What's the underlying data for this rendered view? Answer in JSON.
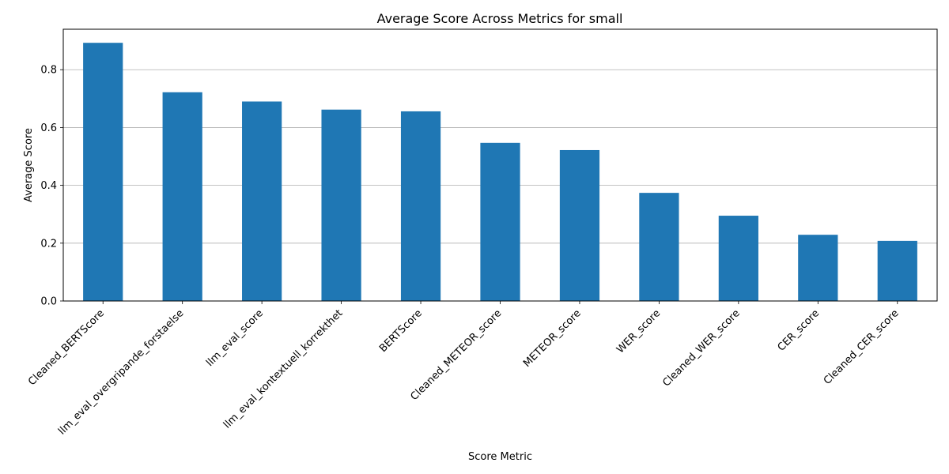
{
  "chart_data": {
    "type": "bar",
    "title": "Average Score Across Metrics for small",
    "xlabel": "Score Metric",
    "ylabel": "Average Score",
    "categories": [
      "Cleaned_BERTScore",
      "llm_eval_overgripande_forstaelse",
      "llm_eval_score",
      "llm_eval_kontextuell_korrekthet",
      "BERTScore",
      "Cleaned_METEOR_score",
      "METEOR_score",
      "WER_score",
      "Cleaned_WER_score",
      "CER_score",
      "Cleaned_CER_score"
    ],
    "values": [
      0.893,
      0.722,
      0.69,
      0.662,
      0.656,
      0.547,
      0.522,
      0.374,
      0.295,
      0.229,
      0.208
    ],
    "ylim": [
      0,
      0.94
    ],
    "yticks": [
      0.0,
      0.2,
      0.4,
      0.6,
      0.8
    ],
    "ytick_labels": [
      "0.0",
      "0.2",
      "0.4",
      "0.6",
      "0.8"
    ],
    "grid": "y",
    "legend": "none",
    "bar_color": "#1f77b4"
  }
}
